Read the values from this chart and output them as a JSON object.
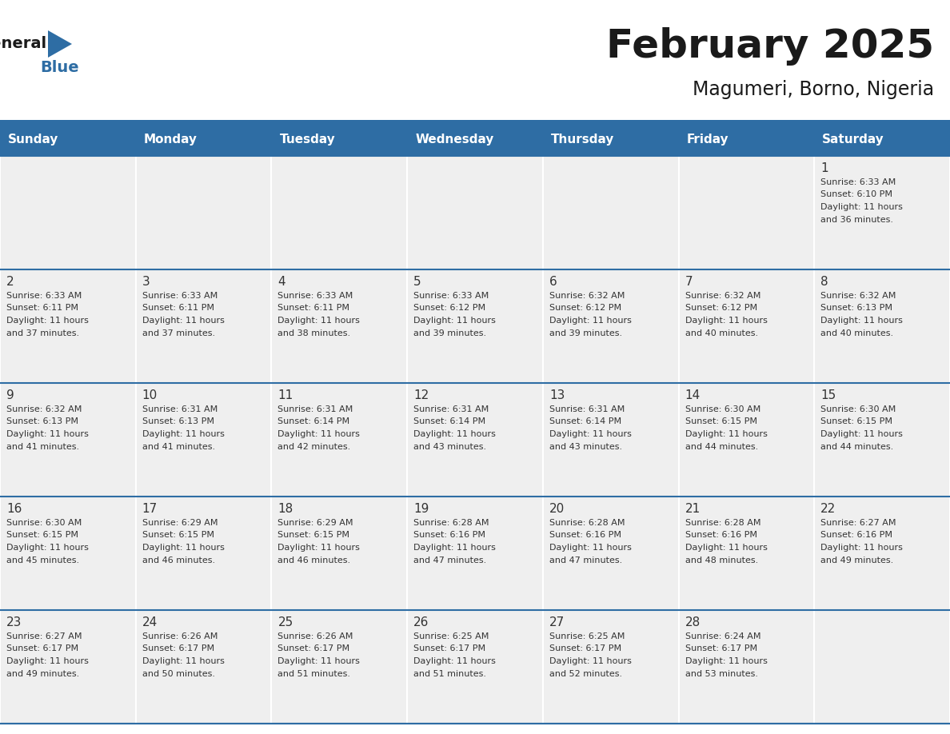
{
  "title": "February 2025",
  "subtitle": "Magumeri, Borno, Nigeria",
  "header_color": "#2E6DA4",
  "header_text_color": "#FFFFFF",
  "cell_bg_color": "#EFEFEF",
  "border_color": "#2E6DA4",
  "text_color": "#333333",
  "day_names": [
    "Sunday",
    "Monday",
    "Tuesday",
    "Wednesday",
    "Thursday",
    "Friday",
    "Saturday"
  ],
  "days": [
    {
      "day": 1,
      "col": 6,
      "row": 0,
      "sunrise": "6:33 AM",
      "sunset": "6:10 PM",
      "daylight": "11 hours and 36 minutes."
    },
    {
      "day": 2,
      "col": 0,
      "row": 1,
      "sunrise": "6:33 AM",
      "sunset": "6:11 PM",
      "daylight": "11 hours and 37 minutes."
    },
    {
      "day": 3,
      "col": 1,
      "row": 1,
      "sunrise": "6:33 AM",
      "sunset": "6:11 PM",
      "daylight": "11 hours and 37 minutes."
    },
    {
      "day": 4,
      "col": 2,
      "row": 1,
      "sunrise": "6:33 AM",
      "sunset": "6:11 PM",
      "daylight": "11 hours and 38 minutes."
    },
    {
      "day": 5,
      "col": 3,
      "row": 1,
      "sunrise": "6:33 AM",
      "sunset": "6:12 PM",
      "daylight": "11 hours and 39 minutes."
    },
    {
      "day": 6,
      "col": 4,
      "row": 1,
      "sunrise": "6:32 AM",
      "sunset": "6:12 PM",
      "daylight": "11 hours and 39 minutes."
    },
    {
      "day": 7,
      "col": 5,
      "row": 1,
      "sunrise": "6:32 AM",
      "sunset": "6:12 PM",
      "daylight": "11 hours and 40 minutes."
    },
    {
      "day": 8,
      "col": 6,
      "row": 1,
      "sunrise": "6:32 AM",
      "sunset": "6:13 PM",
      "daylight": "11 hours and 40 minutes."
    },
    {
      "day": 9,
      "col": 0,
      "row": 2,
      "sunrise": "6:32 AM",
      "sunset": "6:13 PM",
      "daylight": "11 hours and 41 minutes."
    },
    {
      "day": 10,
      "col": 1,
      "row": 2,
      "sunrise": "6:31 AM",
      "sunset": "6:13 PM",
      "daylight": "11 hours and 41 minutes."
    },
    {
      "day": 11,
      "col": 2,
      "row": 2,
      "sunrise": "6:31 AM",
      "sunset": "6:14 PM",
      "daylight": "11 hours and 42 minutes."
    },
    {
      "day": 12,
      "col": 3,
      "row": 2,
      "sunrise": "6:31 AM",
      "sunset": "6:14 PM",
      "daylight": "11 hours and 43 minutes."
    },
    {
      "day": 13,
      "col": 4,
      "row": 2,
      "sunrise": "6:31 AM",
      "sunset": "6:14 PM",
      "daylight": "11 hours and 43 minutes."
    },
    {
      "day": 14,
      "col": 5,
      "row": 2,
      "sunrise": "6:30 AM",
      "sunset": "6:15 PM",
      "daylight": "11 hours and 44 minutes."
    },
    {
      "day": 15,
      "col": 6,
      "row": 2,
      "sunrise": "6:30 AM",
      "sunset": "6:15 PM",
      "daylight": "11 hours and 44 minutes."
    },
    {
      "day": 16,
      "col": 0,
      "row": 3,
      "sunrise": "6:30 AM",
      "sunset": "6:15 PM",
      "daylight": "11 hours and 45 minutes."
    },
    {
      "day": 17,
      "col": 1,
      "row": 3,
      "sunrise": "6:29 AM",
      "sunset": "6:15 PM",
      "daylight": "11 hours and 46 minutes."
    },
    {
      "day": 18,
      "col": 2,
      "row": 3,
      "sunrise": "6:29 AM",
      "sunset": "6:15 PM",
      "daylight": "11 hours and 46 minutes."
    },
    {
      "day": 19,
      "col": 3,
      "row": 3,
      "sunrise": "6:28 AM",
      "sunset": "6:16 PM",
      "daylight": "11 hours and 47 minutes."
    },
    {
      "day": 20,
      "col": 4,
      "row": 3,
      "sunrise": "6:28 AM",
      "sunset": "6:16 PM",
      "daylight": "11 hours and 47 minutes."
    },
    {
      "day": 21,
      "col": 5,
      "row": 3,
      "sunrise": "6:28 AM",
      "sunset": "6:16 PM",
      "daylight": "11 hours and 48 minutes."
    },
    {
      "day": 22,
      "col": 6,
      "row": 3,
      "sunrise": "6:27 AM",
      "sunset": "6:16 PM",
      "daylight": "11 hours and 49 minutes."
    },
    {
      "day": 23,
      "col": 0,
      "row": 4,
      "sunrise": "6:27 AM",
      "sunset": "6:17 PM",
      "daylight": "11 hours and 49 minutes."
    },
    {
      "day": 24,
      "col": 1,
      "row": 4,
      "sunrise": "6:26 AM",
      "sunset": "6:17 PM",
      "daylight": "11 hours and 50 minutes."
    },
    {
      "day": 25,
      "col": 2,
      "row": 4,
      "sunrise": "6:26 AM",
      "sunset": "6:17 PM",
      "daylight": "11 hours and 51 minutes."
    },
    {
      "day": 26,
      "col": 3,
      "row": 4,
      "sunrise": "6:25 AM",
      "sunset": "6:17 PM",
      "daylight": "11 hours and 51 minutes."
    },
    {
      "day": 27,
      "col": 4,
      "row": 4,
      "sunrise": "6:25 AM",
      "sunset": "6:17 PM",
      "daylight": "11 hours and 52 minutes."
    },
    {
      "day": 28,
      "col": 5,
      "row": 4,
      "sunrise": "6:24 AM",
      "sunset": "6:17 PM",
      "daylight": "11 hours and 53 minutes."
    }
  ],
  "num_rows": 5,
  "num_cols": 7,
  "logo_general_color": "#1a1a1a",
  "logo_blue_color": "#2E6DA4",
  "logo_triangle_color": "#2E6DA4"
}
